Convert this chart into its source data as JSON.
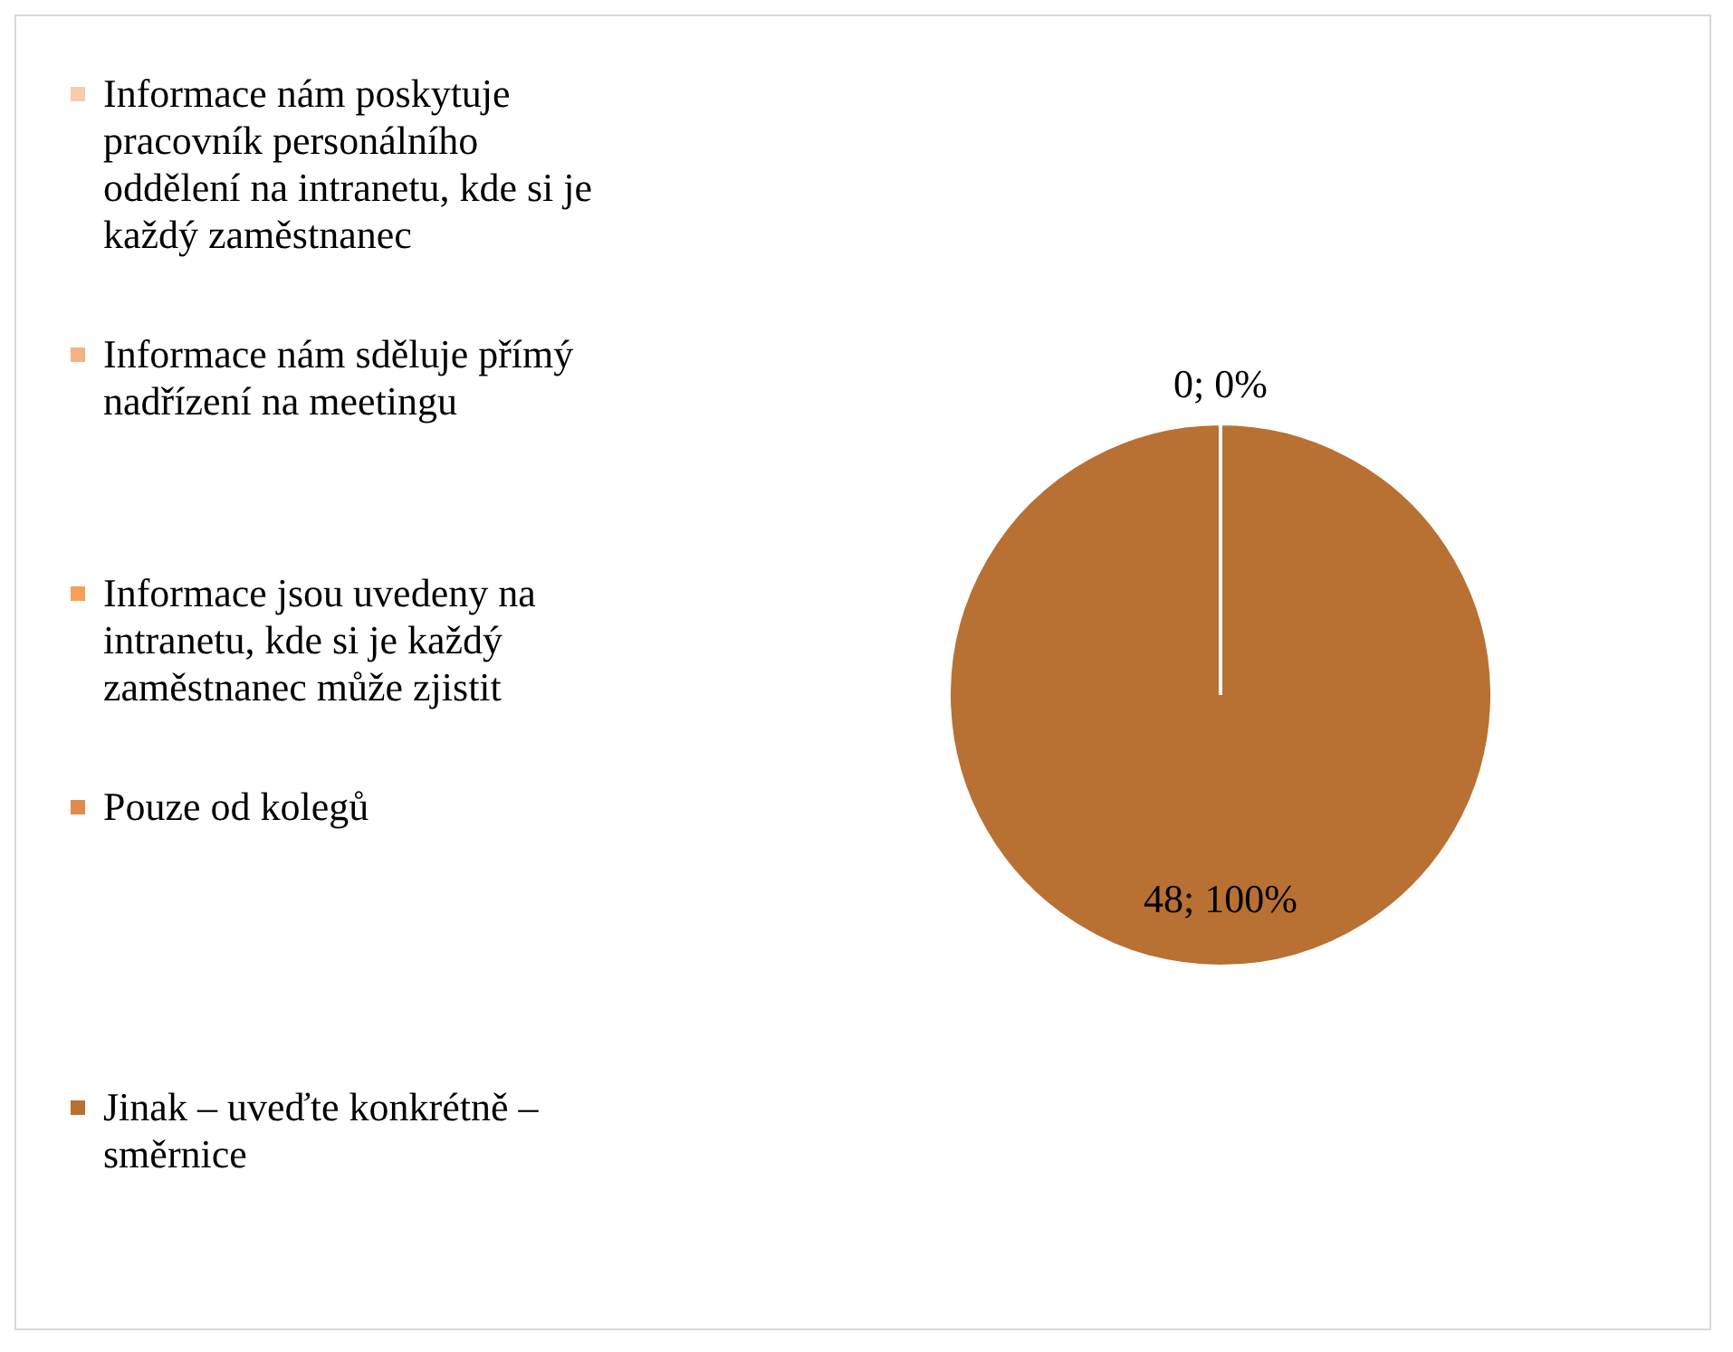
{
  "chart_data": {
    "type": "pie",
    "categories": [
      "Informace nám poskytuje pracovník personálního oddělení na intranetu, kde si je každý zaměstnanec",
      "Informace nám sděluje přímý nadřízení na meetingu",
      "Informace jsou uvedeny na intranetu, kde si je každý zaměstnanec může zjistit",
      "Pouze od kolegů",
      "Jinak – uveďte konkrétně – směrnice"
    ],
    "values": [
      0,
      0,
      0,
      0,
      48
    ],
    "colors": [
      "#f8cbad",
      "#f4b183",
      "#f4a05a",
      "#e08b4d",
      "#b87033"
    ],
    "value_labels": [
      null,
      null,
      null,
      "0; 0%",
      "48; 100%"
    ],
    "legend": "left"
  }
}
